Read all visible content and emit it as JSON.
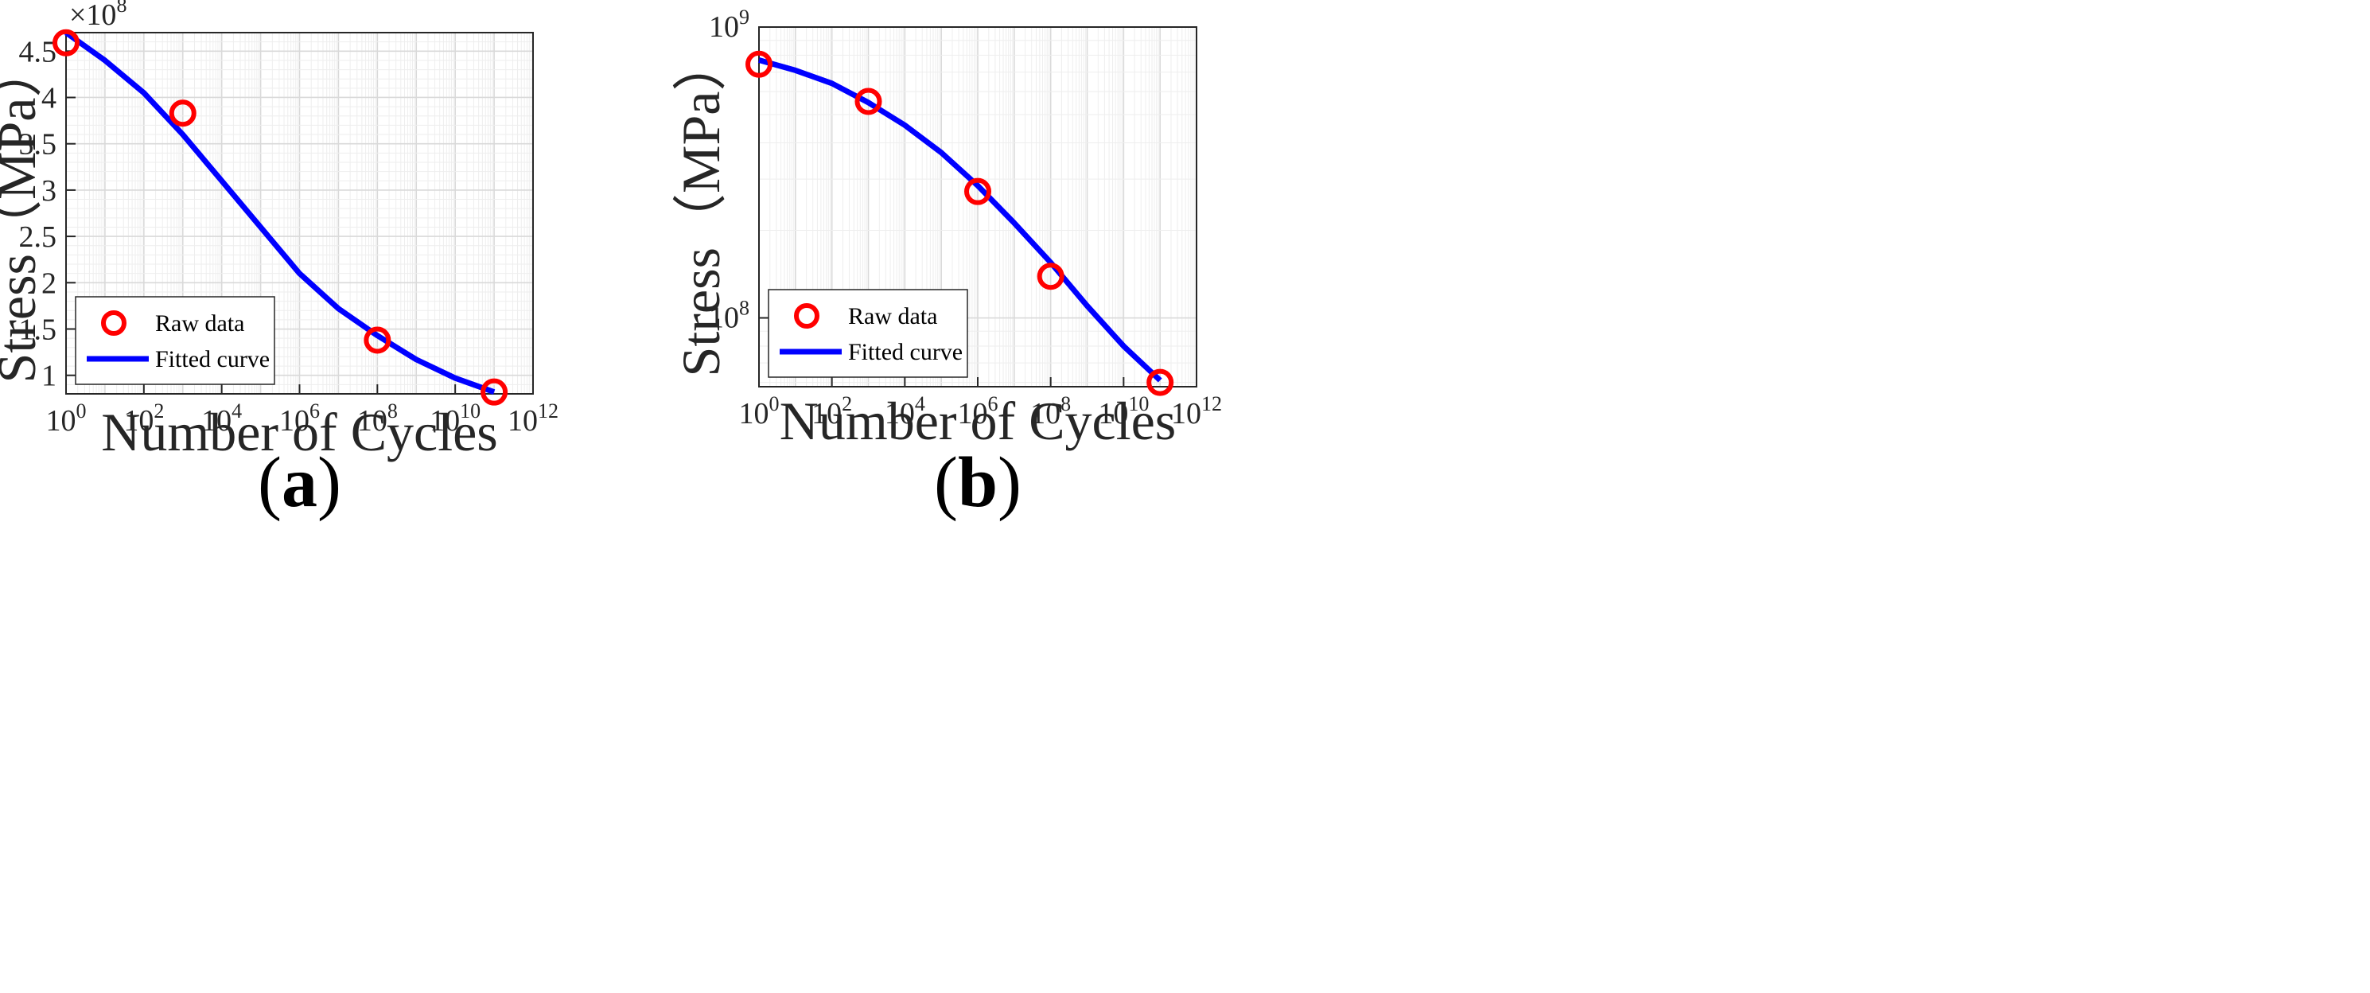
{
  "chart_data": [
    {
      "panel": "(a)",
      "panel_letter": "a",
      "type": "scatter+line",
      "x_scale": "log",
      "y_scale": "linear",
      "xlabel": "Number of Cycles",
      "ylabel": "Stress（MPa）",
      "xlim": [
        1,
        1000000000000.0
      ],
      "ylim": [
        80000000.0,
        470000000.0
      ],
      "x_tick_exponents": [
        0,
        2,
        4,
        6,
        8,
        10,
        12
      ],
      "y_ticks": [
        1,
        1.5,
        2,
        2.5,
        3,
        3.5,
        4,
        4.5
      ],
      "y_tick_labels": [
        "1",
        "1.5",
        "2",
        "2.5",
        "3",
        "3.5",
        "4",
        "4.5"
      ],
      "y_multiplier_base": "×10",
      "y_multiplier_exponent": "8",
      "grid": true,
      "legend": {
        "position": "bottom-left",
        "entries": [
          "Raw data",
          "Fitted curve"
        ]
      },
      "series": [
        {
          "name": "Raw data",
          "style": "circle-marker",
          "color": "#ff0000",
          "x": [
            1,
            1000,
            100000000.0,
            100000000000.0
          ],
          "y": [
            459000000,
            383000000,
            138000000,
            82000000
          ]
        },
        {
          "name": "Fitted curve",
          "style": "line",
          "color": "#0000ff",
          "x": [
            1,
            10,
            100,
            1000,
            10000,
            100000,
            1000000,
            10000000,
            100000000,
            1000000000.0,
            10000000000.0,
            100000000000.0
          ],
          "y": [
            470000000,
            440000000,
            405000000,
            360000000,
            310000000,
            260000000,
            210000000,
            172000000,
            143000000,
            117000000,
            97000000,
            82000000
          ]
        }
      ]
    },
    {
      "panel": "(b)",
      "panel_letter": "b",
      "type": "scatter+line",
      "x_scale": "log",
      "y_scale": "log",
      "xlabel": "Number of Cycles",
      "ylabel": "Stress（MPa）",
      "xlim": [
        1,
        1000000000000.0
      ],
      "ylim": [
        58000000,
        1000000000
      ],
      "x_tick_exponents": [
        0,
        2,
        4,
        6,
        8,
        10,
        12
      ],
      "y_tick_exponents": [
        8,
        9
      ],
      "grid": true,
      "legend": {
        "position": "bottom-left",
        "entries": [
          "Raw data",
          "Fitted curve"
        ]
      },
      "series": [
        {
          "name": "Raw data",
          "style": "circle-marker",
          "color": "#ff0000",
          "x": [
            1,
            1000,
            1000000,
            100000000,
            100000000000.0
          ],
          "y": [
            745000000,
            555000000,
            272000000,
            139000000,
            60000000
          ]
        },
        {
          "name": "Fitted curve",
          "style": "line",
          "color": "#0000ff",
          "x": [
            1,
            10,
            100,
            1000,
            10000,
            100000,
            1000000,
            10000000,
            100000000,
            1000000000.0,
            10000000000.0,
            100000000000.0
          ],
          "y": [
            770000000,
            710000000,
            640000000,
            550000000,
            460000000,
            370000000,
            285000000,
            212000000,
            155000000,
            110000000,
            80000000,
            61000000
          ]
        }
      ]
    }
  ]
}
